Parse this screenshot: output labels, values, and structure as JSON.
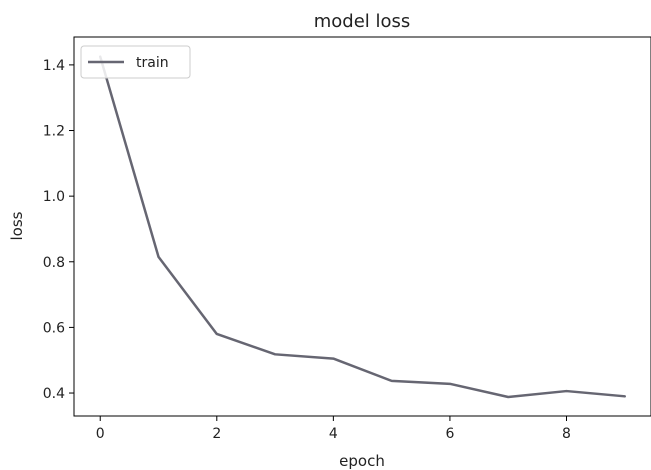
{
  "chart_data": {
    "type": "line",
    "title": "model loss",
    "xlabel": "epoch",
    "ylabel": "loss",
    "xlim": [
      -0.45,
      9.45
    ],
    "ylim": [
      0.33,
      1.485
    ],
    "xticks": [
      0,
      2,
      4,
      6,
      8
    ],
    "yticks": [
      0.4,
      0.6,
      0.8,
      1.0,
      1.2,
      1.4
    ],
    "xtick_labels": [
      "0",
      "2",
      "4",
      "6",
      "8"
    ],
    "ytick_labels": [
      "0.4",
      "0.6",
      "0.8",
      "1.0",
      "1.2",
      "1.4"
    ],
    "grid": false,
    "legend_position": "upper left",
    "series": [
      {
        "name": "train",
        "color": "#666672",
        "x": [
          0,
          1,
          2,
          3,
          4,
          5,
          6,
          7,
          8,
          9
        ],
        "y": [
          1.425,
          0.815,
          0.58,
          0.518,
          0.505,
          0.437,
          0.428,
          0.388,
          0.406,
          0.39
        ]
      }
    ]
  }
}
